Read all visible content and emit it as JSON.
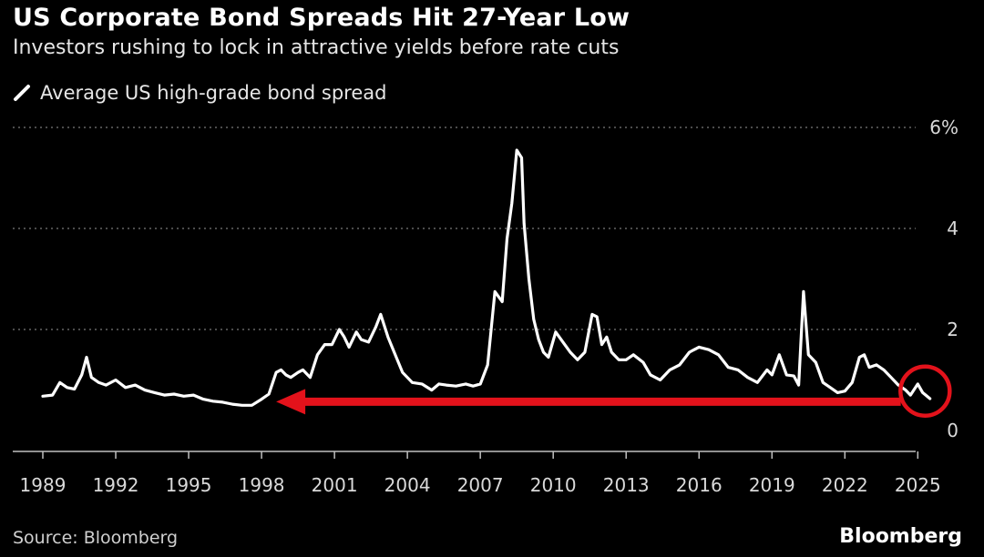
{
  "header": {
    "title": "US Corporate Bond Spreads Hit 27-Year Low",
    "subtitle": "Investors rushing to lock in attractive yields before rate cuts"
  },
  "footer": {
    "source": "Source: Bloomberg",
    "brand": "Bloomberg"
  },
  "colors": {
    "background": "#000000",
    "line": "#ffffff",
    "grid": "#666666",
    "annotation": "#e3121b"
  },
  "chart_data": {
    "type": "line",
    "title": "US Corporate Bond Spreads Hit 27-Year Low",
    "subtitle": "Investors rushing to lock in attractive yields before rate cuts",
    "legend": {
      "placement": "top-left",
      "entries": [
        "Average US high-grade bond spread"
      ]
    },
    "grid": "horizontal dotted",
    "ylim": [
      0,
      6
    ],
    "xlim": [
      1989,
      2026
    ],
    "y_ticks": [
      0,
      2,
      4,
      6
    ],
    "y_tick_labels": [
      "0",
      "2",
      "4",
      "6%"
    ],
    "x_ticks": [
      1989,
      1992,
      1995,
      1998,
      2001,
      2004,
      2007,
      2010,
      2013,
      2016,
      2019,
      2022,
      2025
    ],
    "x_tick_labels": [
      "1989",
      "1992",
      "1995",
      "1998",
      "2001",
      "2004",
      "2007",
      "2010",
      "2013",
      "2016",
      "2019",
      "2022",
      "2025"
    ],
    "series": [
      {
        "name": "Average US high-grade bond spread",
        "x": [
          1989.0,
          1989.4,
          1989.7,
          1990.0,
          1990.3,
          1990.6,
          1990.8,
          1991.0,
          1991.3,
          1991.6,
          1992.0,
          1992.4,
          1992.8,
          1993.2,
          1993.6,
          1994.0,
          1994.4,
          1994.8,
          1995.2,
          1995.6,
          1996.0,
          1996.4,
          1996.8,
          1997.2,
          1997.6,
          1998.0,
          1998.3,
          1998.6,
          1998.8,
          1999.0,
          1999.2,
          1999.5,
          1999.7,
          2000.0,
          2000.3,
          2000.6,
          2000.9,
          2001.2,
          2001.4,
          2001.6,
          2001.9,
          2002.1,
          2002.4,
          2002.7,
          2002.9,
          2003.2,
          2003.5,
          2003.8,
          2004.2,
          2004.6,
          2005.0,
          2005.3,
          2005.6,
          2006.0,
          2006.4,
          2006.7,
          2007.0,
          2007.3,
          2007.6,
          2007.9,
          2008.1,
          2008.3,
          2008.5,
          2008.7,
          2008.8,
          2009.0,
          2009.2,
          2009.4,
          2009.6,
          2009.8,
          2010.1,
          2010.4,
          2010.7,
          2011.0,
          2011.3,
          2011.6,
          2011.8,
          2012.0,
          2012.2,
          2012.4,
          2012.7,
          2013.0,
          2013.3,
          2013.7,
          2014.0,
          2014.4,
          2014.8,
          2015.2,
          2015.6,
          2016.0,
          2016.4,
          2016.8,
          2017.2,
          2017.6,
          2018.0,
          2018.4,
          2018.8,
          2019.0,
          2019.3,
          2019.6,
          2019.9,
          2020.1,
          2020.3,
          2020.5,
          2020.8,
          2021.1,
          2021.4,
          2021.7,
          2022.0,
          2022.3,
          2022.6,
          2022.8,
          2023.0,
          2023.3,
          2023.6,
          2023.9,
          2024.2,
          2024.5,
          2024.7,
          2025.0,
          2025.2,
          2025.5
        ],
        "y": [
          0.68,
          0.7,
          0.95,
          0.85,
          0.82,
          1.1,
          1.45,
          1.05,
          0.95,
          0.9,
          1.0,
          0.85,
          0.9,
          0.8,
          0.75,
          0.7,
          0.72,
          0.68,
          0.7,
          0.62,
          0.58,
          0.56,
          0.52,
          0.5,
          0.5,
          0.62,
          0.72,
          1.15,
          1.2,
          1.1,
          1.05,
          1.15,
          1.2,
          1.05,
          1.5,
          1.7,
          1.7,
          2.0,
          1.85,
          1.65,
          1.95,
          1.8,
          1.75,
          2.05,
          2.3,
          1.85,
          1.5,
          1.15,
          0.95,
          0.92,
          0.8,
          0.92,
          0.9,
          0.88,
          0.92,
          0.88,
          0.92,
          1.3,
          2.75,
          2.55,
          3.8,
          4.5,
          5.55,
          5.4,
          4.1,
          3.0,
          2.2,
          1.8,
          1.55,
          1.45,
          1.95,
          1.75,
          1.55,
          1.4,
          1.55,
          2.3,
          2.25,
          1.7,
          1.85,
          1.55,
          1.4,
          1.4,
          1.5,
          1.35,
          1.1,
          1.0,
          1.2,
          1.3,
          1.55,
          1.65,
          1.6,
          1.5,
          1.25,
          1.2,
          1.05,
          0.95,
          1.2,
          1.1,
          1.5,
          1.1,
          1.08,
          0.9,
          2.75,
          1.5,
          1.35,
          0.95,
          0.85,
          0.75,
          0.78,
          0.95,
          1.45,
          1.5,
          1.25,
          1.3,
          1.2,
          1.05,
          0.9,
          0.8,
          0.7,
          0.92,
          0.75,
          0.63
        ]
      }
    ],
    "annotations": [
      {
        "type": "arrow",
        "color": "#e3121b",
        "from_x": 2024.3,
        "to_x": 1998.6,
        "y": 0.57
      },
      {
        "type": "circle",
        "color": "#e3121b",
        "center_x": 2025.3,
        "center_y": 0.78
      }
    ]
  }
}
